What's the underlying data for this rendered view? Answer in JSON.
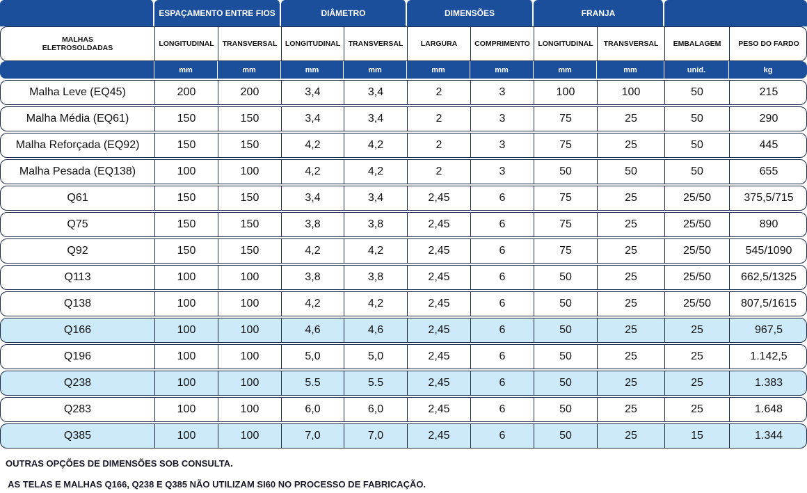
{
  "header_groups": [
    "ESPAÇAMENTO ENTRE FIOS",
    "DIÂMETRO",
    "DIMENSÕES",
    "FRANJA"
  ],
  "columns": [
    "MALHAS\nELETROSOLDADAS",
    "LONGITUDINAL",
    "TRANSVERSAL",
    "LONGITUDINAL",
    "TRANSVERSAL",
    "LARGURA",
    "COMPRIMENTO",
    "LONGITUDINAL",
    "TRANSVERSAL",
    "EMBALAGEM",
    "PESO DO FARDO"
  ],
  "units": [
    "mm",
    "mm",
    "mm",
    "mm",
    "mm",
    "mm",
    "mm",
    "mm",
    "unid.",
    "kg"
  ],
  "rows": [
    [
      "Malha Leve (EQ45)",
      "200",
      "200",
      "3,4",
      "3,4",
      "2",
      "3",
      "100",
      "100",
      "50",
      "215"
    ],
    [
      "Malha Média (EQ61)",
      "150",
      "150",
      "3,4",
      "3,4",
      "2",
      "3",
      "75",
      "25",
      "50",
      "290"
    ],
    [
      "Malha Reforçada (EQ92)",
      "150",
      "150",
      "4,2",
      "4,2",
      "2",
      "3",
      "75",
      "25",
      "50",
      "445"
    ],
    [
      "Malha Pesada (EQ138)",
      "100",
      "100",
      "4,2",
      "4,2",
      "2",
      "3",
      "50",
      "50",
      "50",
      "655"
    ],
    [
      "Q61",
      "150",
      "150",
      "3,4",
      "3,4",
      "2,45",
      "6",
      "75",
      "25",
      "25/50",
      "375,5/715"
    ],
    [
      "Q75",
      "150",
      "150",
      "3,8",
      "3,8",
      "2,45",
      "6",
      "75",
      "25",
      "25/50",
      "890"
    ],
    [
      "Q92",
      "150",
      "150",
      "4,2",
      "4,2",
      "2,45",
      "6",
      "75",
      "25",
      "25/50",
      "545/1090"
    ],
    [
      "Q113",
      "100",
      "100",
      "3,8",
      "3,8",
      "2,45",
      "6",
      "50",
      "25",
      "25/50",
      "662,5/1325"
    ],
    [
      "Q138",
      "100",
      "100",
      "4,2",
      "4,2",
      "2,45",
      "6",
      "50",
      "25",
      "25/50",
      "807,5/1615"
    ],
    [
      "Q166",
      "100",
      "100",
      "4,6",
      "4,6",
      "2,45",
      "6",
      "50",
      "25",
      "25",
      "967,5"
    ],
    [
      "Q196",
      "100",
      "100",
      "5,0",
      "5,0",
      "2,45",
      "6",
      "50",
      "25",
      "25",
      "1.142,5"
    ],
    [
      "Q238",
      "100",
      "100",
      "5.5",
      "5.5",
      "2,45",
      "6",
      "50",
      "25",
      "25",
      "1.383"
    ],
    [
      "Q283",
      "100",
      "100",
      "6,0",
      "6,0",
      "2,45",
      "6",
      "50",
      "25",
      "25",
      "1.648"
    ],
    [
      "Q385",
      "100",
      "100",
      "7,0",
      "7,0",
      "2,45",
      "6",
      "50",
      "25",
      "15",
      "1.344"
    ]
  ],
  "notes": [
    "OUTRAS OPÇÕES DE DIMENSÕES SOB CONSULTA.",
    " AS TELAS E MALHAS Q166, Q238 E Q385 NÃO UTILIZAM SI60 NO PROCESSO DE FABRICAÇÃO."
  ]
}
